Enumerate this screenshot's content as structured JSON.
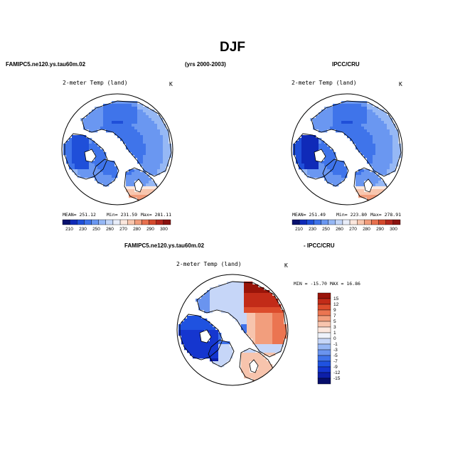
{
  "page": {
    "title": "DJF"
  },
  "headers": {
    "model": "FAMIPC5.ne120.ys.tau60m.02",
    "years": "(yrs 2000-2003)",
    "obs": "IPCC/CRU",
    "diff_model": "FAMIPC5.ne120.ys.tau60m.02",
    "diff_obs": "- IPCC/CRU"
  },
  "colors": {
    "abs_scale": [
      "#08106e",
      "#0f2ab8",
      "#1f4fd9",
      "#3f74ea",
      "#6a97f1",
      "#96b8f5",
      "#c3d6f8",
      "#e9eefa",
      "#fbe7dd",
      "#f8c6ae",
      "#f29d7c",
      "#e8714f",
      "#d44a2d",
      "#b3261c",
      "#8a120f"
    ],
    "diff_scale": [
      "#070e6b",
      "#0d1fa8",
      "#1536cf",
      "#1f52e0",
      "#3f72ea",
      "#6a94ef",
      "#96b6f4",
      "#c6d6f8",
      "#eef2fb",
      "#fbe7de",
      "#f7c4ad",
      "#f29e7d",
      "#eb7551",
      "#dc4c2c",
      "#c22b18",
      "#9a1409"
    ]
  },
  "chart_data": [
    {
      "type": "heatmap",
      "projection": "north-polar-stereographic",
      "title": "2-meter Temp (land)",
      "units": "K",
      "stats": {
        "mean": "MEAN= 251.12",
        "min": "Min= 231.59",
        "max": "Max= 281.11"
      },
      "colorbar": {
        "orientation": "horizontal",
        "ticks": [
          "210",
          "230",
          "250",
          "260",
          "270",
          "280",
          "290",
          "300"
        ]
      }
    },
    {
      "type": "heatmap",
      "projection": "north-polar-stereographic",
      "title": "2-meter Temp (land)",
      "units": "K",
      "stats": {
        "mean": "MEAN= 251.49",
        "min": "Min= 223.80",
        "max": "Max= 278.91"
      },
      "colorbar": {
        "orientation": "horizontal",
        "ticks": [
          "210",
          "230",
          "250",
          "260",
          "270",
          "280",
          "290",
          "300"
        ]
      }
    },
    {
      "type": "heatmap",
      "projection": "north-polar-stereographic",
      "title": "2-meter Temp (land)",
      "units": "K",
      "stats": {
        "range": "MIN = -15.70 MAX =  16.86"
      },
      "colorbar": {
        "orientation": "vertical",
        "ticks": [
          "15",
          "12",
          "9",
          "7",
          "5",
          "3",
          "1",
          "0",
          "-1",
          "-3",
          "-5",
          "-7",
          "-9",
          "-12",
          "-15"
        ]
      }
    }
  ]
}
